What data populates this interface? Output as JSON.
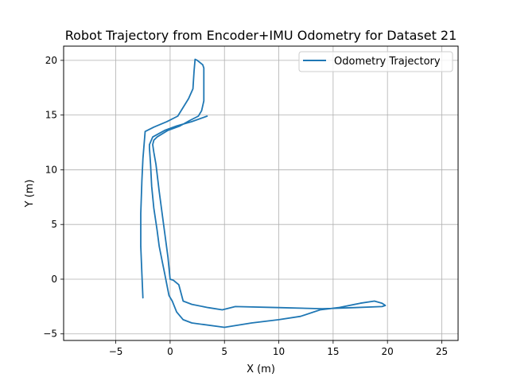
{
  "chart_data": {
    "type": "line",
    "title": "Robot Trajectory from Encoder+IMU Odometry for Dataset 21",
    "xlabel": "X (m)",
    "ylabel": "Y (m)",
    "xlim": [
      -9.8,
      26.5
    ],
    "ylim": [
      -5.6,
      21.3
    ],
    "xticks": [
      -5,
      0,
      5,
      10,
      15,
      20,
      25
    ],
    "yticks": [
      -5,
      0,
      5,
      10,
      15,
      20
    ],
    "xtick_labels": [
      "−5",
      "0",
      "5",
      "10",
      "15",
      "20",
      "25"
    ],
    "ytick_labels": [
      "−5",
      "0",
      "5",
      "10",
      "15",
      "20"
    ],
    "grid": true,
    "legend_position": "top-right",
    "colors": {
      "series": "#1f77b4",
      "grid": "#b0b0b0"
    },
    "series": [
      {
        "name": "Odometry Trajectory",
        "x": [
          -2.5,
          -2.6,
          -2.7,
          -2.7,
          -2.6,
          -2.5,
          -2.3,
          -1.5,
          -0.3,
          0.7,
          1.7,
          2.1,
          2.2,
          2.3,
          2.5,
          3.0,
          3.1,
          3.1,
          2.9,
          2.6,
          1.8,
          0.9,
          -0.2,
          -1.2,
          -1.5,
          -1.6,
          -1.5,
          -1.3,
          -1.0,
          -0.6,
          -0.2,
          0.0,
          0.3,
          0.8,
          1.2,
          2.0,
          3.5,
          4.8,
          6.0,
          10.0,
          14.0,
          17.0,
          19.5,
          19.8,
          19.5,
          18.8,
          17.5,
          15.5,
          13.8,
          12.0,
          10.0,
          7.5,
          5.0,
          2.0,
          1.2,
          0.6,
          0.2,
          -0.1,
          -0.3,
          -0.5,
          -0.7,
          -1.0,
          -1.2,
          -1.5,
          -1.7,
          -1.8,
          -1.9,
          -1.9,
          -1.6,
          -0.5,
          0.6,
          2.0,
          3.4
        ],
        "y": [
          -1.7,
          0.5,
          3.0,
          6.0,
          9.0,
          11.0,
          13.5,
          13.9,
          14.4,
          14.9,
          16.5,
          17.4,
          19.0,
          20.1,
          20.0,
          19.6,
          19.3,
          16.3,
          15.4,
          14.9,
          14.5,
          14.0,
          13.6,
          13.0,
          12.7,
          12.3,
          11.6,
          10.5,
          8.0,
          5.0,
          2.0,
          0.0,
          -0.1,
          -0.5,
          -2.0,
          -2.3,
          -2.6,
          -2.8,
          -2.5,
          -2.6,
          -2.7,
          -2.6,
          -2.5,
          -2.4,
          -2.2,
          -2.0,
          -2.2,
          -2.6,
          -2.8,
          -3.4,
          -3.7,
          -4.0,
          -4.4,
          -4.0,
          -3.7,
          -3.0,
          -2.0,
          -1.5,
          -0.5,
          0.5,
          1.5,
          3.0,
          4.5,
          6.5,
          8.5,
          10.5,
          12.0,
          12.3,
          13.0,
          13.6,
          14.0,
          14.4,
          14.9
        ]
      }
    ]
  }
}
